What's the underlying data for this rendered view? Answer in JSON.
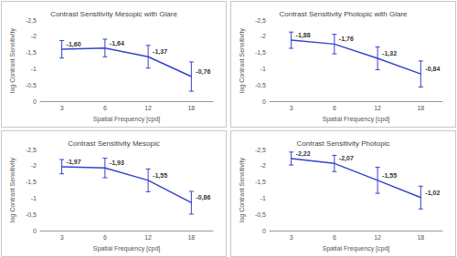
{
  "chart_data": [
    {
      "type": "line",
      "title": "Contrast Sensitivity Mesopic with Glare",
      "x_label": "Spatial Frequency [cpd]",
      "y_label": "log Contrast Sensitivity",
      "categories": [
        3,
        6,
        12,
        18
      ],
      "values": [
        -1.6,
        -1.64,
        -1.37,
        -0.76
      ],
      "value_labels": [
        "-1,60",
        "-1,64",
        "-1,37",
        "-0,76"
      ],
      "errors": [
        0.27,
        0.27,
        0.35,
        0.45
      ],
      "color": "#3344cc",
      "data_labels": true,
      "grid": false,
      "ylim": [
        -2.5,
        0
      ],
      "yticks": [
        {
          "value": -2.5,
          "label": "-2,5"
        },
        -2,
        {
          "value": -1.5,
          "label": "-1,5"
        },
        -1,
        {
          "value": -0.5,
          "label": "-0,5"
        },
        0
      ]
    },
    {
      "type": "line",
      "title": "Contrast Sensitivity Photopic with Glare",
      "x_label": "Spatial Frequency [cpd]",
      "y_label": "log Contrast Sensitivity",
      "categories": [
        3,
        6,
        12,
        18
      ],
      "values": [
        -1.88,
        -1.76,
        -1.32,
        -0.84
      ],
      "value_labels": [
        "-1,88",
        "-1,76",
        "-1,32",
        "-0,84"
      ],
      "errors": [
        0.25,
        0.3,
        0.35,
        0.4
      ],
      "color": "#3344cc",
      "data_labels": true,
      "grid": false,
      "ylim": [
        -2.5,
        0
      ],
      "yticks": [
        {
          "value": -2.5,
          "label": "-2,5"
        },
        -2,
        {
          "value": -1.5,
          "label": "-1,5"
        },
        -1,
        {
          "value": -0.5,
          "label": "-0,5"
        },
        0
      ]
    },
    {
      "type": "line",
      "title": "Contrast Sensitivity Mesopic",
      "x_label": "Spatial Frequency [cpd]",
      "y_label": "log Contrast Sensitivity",
      "categories": [
        3,
        6,
        12,
        18
      ],
      "values": [
        -1.97,
        -1.93,
        -1.55,
        -0.86
      ],
      "value_labels": [
        "-1,97",
        "-1,93",
        "-1,55",
        "-0,86"
      ],
      "errors": [
        0.22,
        0.3,
        0.35,
        0.35
      ],
      "color": "#3344cc",
      "data_labels": true,
      "grid": false,
      "ylim": [
        -2.5,
        0
      ],
      "yticks": [
        {
          "value": -2.5,
          "label": "-2,5"
        },
        -2,
        {
          "value": -1.5,
          "label": "-1,5"
        },
        -1,
        {
          "value": -0.5,
          "label": "-0,5"
        },
        0
      ]
    },
    {
      "type": "line",
      "title": "Contrast Sensitivity Photopic",
      "x_label": "Spatial Frequency [cpd]",
      "y_label": "log Contrast Sensitivity",
      "categories": [
        3,
        6,
        12,
        18
      ],
      "values": [
        -2.22,
        -2.07,
        -1.55,
        -1.02
      ],
      "value_labels": [
        "-2,22",
        "-2,07",
        "-1,55",
        "-1,02"
      ],
      "errors": [
        0.2,
        0.25,
        0.4,
        0.35
      ],
      "color": "#3344cc",
      "data_labels": true,
      "grid": false,
      "ylim": [
        -2.5,
        0
      ],
      "yticks": [
        {
          "value": -2.5,
          "label": "-2,5"
        },
        -2,
        {
          "value": -1.5,
          "label": "-1,5"
        },
        -1,
        {
          "value": -0.5,
          "label": "-0,5"
        },
        0
      ]
    }
  ]
}
